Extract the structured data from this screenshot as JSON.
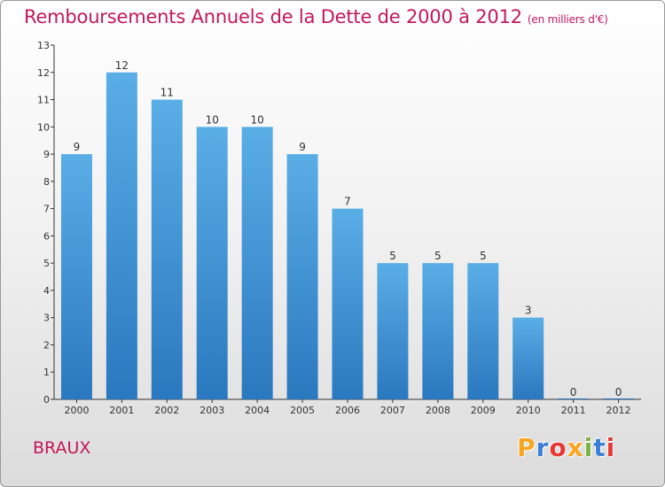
{
  "title": "Remboursements Annuels de la Dette de 2000 à 2012",
  "subtitle": "(en milliers d'€)",
  "commune": "BRAUX",
  "logo": {
    "text": "Proxiti",
    "letters": [
      {
        "ch": "P",
        "color": "#f5a623"
      },
      {
        "ch": "r",
        "color": "#3a7fd5"
      },
      {
        "ch": "o",
        "color": "#e53935"
      },
      {
        "ch": "x",
        "color": "#f5a623"
      },
      {
        "ch": "i",
        "color": "#7cb342"
      },
      {
        "ch": "t",
        "color": "#3a7fd5"
      },
      {
        "ch": "i",
        "color": "#e53935"
      }
    ]
  },
  "colors": {
    "title": "#c2185b",
    "bar_top": "#5aaee6",
    "bar_bottom": "#2a78bf",
    "axis": "#333333",
    "label": "#333333"
  },
  "chart_data": {
    "type": "bar",
    "categories": [
      "2000",
      "2001",
      "2002",
      "2003",
      "2004",
      "2005",
      "2006",
      "2007",
      "2008",
      "2009",
      "2010",
      "2011",
      "2012"
    ],
    "values": [
      9,
      12,
      11,
      10,
      10,
      9,
      7,
      5,
      5,
      5,
      3,
      0,
      0
    ],
    "ylim": [
      0,
      13
    ],
    "yticks": [
      0,
      1,
      2,
      3,
      4,
      5,
      6,
      7,
      8,
      9,
      10,
      11,
      12,
      13
    ],
    "grid": false,
    "data_labels": true
  }
}
